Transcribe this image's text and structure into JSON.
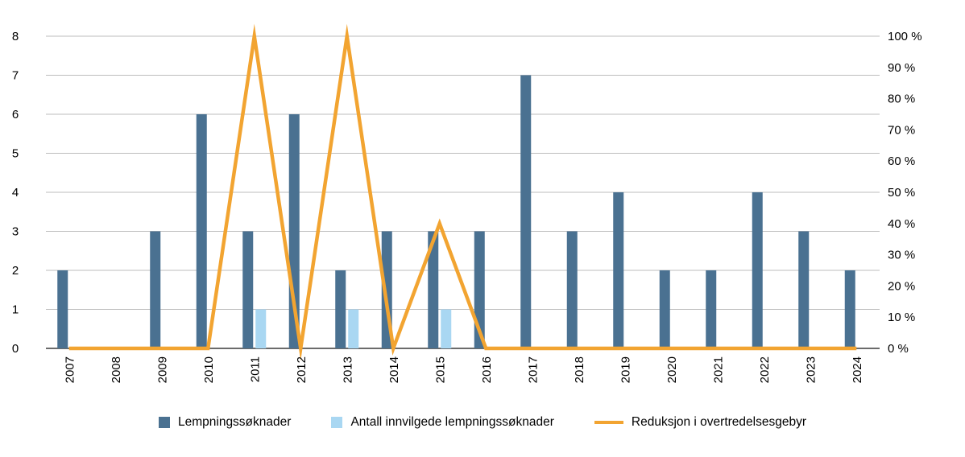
{
  "chart_data": {
    "type": "bar",
    "subtype": "bar-line-combo",
    "title": "",
    "categories": [
      "2007",
      "2008",
      "2009",
      "2010",
      "2011",
      "2012",
      "2013",
      "2014",
      "2015",
      "2016",
      "2017",
      "2018",
      "2019",
      "2020",
      "2021",
      "2022",
      "2023",
      "2024"
    ],
    "series": [
      {
        "name": "Lempningssøknader",
        "type": "bar",
        "axis": "left",
        "color": "#4a7191",
        "values": [
          2,
          0,
          3,
          6,
          3,
          6,
          2,
          3,
          3,
          3,
          7,
          3,
          4,
          2,
          2,
          4,
          3,
          2
        ]
      },
      {
        "name": "Antall innvilgede lempningssøknader",
        "type": "bar",
        "axis": "left",
        "color": "#a9d7f2",
        "values": [
          0,
          0,
          0,
          0,
          1,
          0,
          1,
          0,
          1,
          0,
          0,
          0,
          0,
          0,
          0,
          0,
          0,
          0
        ]
      },
      {
        "name": "Reduksjon i overtredelsesgebyr",
        "type": "line",
        "axis": "right",
        "color": "#f2a431",
        "values": [
          0,
          0,
          0,
          0,
          100,
          0,
          100,
          0,
          40,
          0,
          0,
          0,
          0,
          0,
          0,
          0,
          0,
          0
        ]
      }
    ],
    "left_axis": {
      "min": 0,
      "max": 8,
      "ticks": [
        0,
        1,
        2,
        3,
        4,
        5,
        6,
        7,
        8
      ]
    },
    "right_axis": {
      "min": 0,
      "max": 100,
      "ticks": [
        0,
        10,
        20,
        30,
        40,
        50,
        60,
        70,
        80,
        90,
        100
      ],
      "suffix": " %"
    },
    "grid": true,
    "legend_position": "bottom",
    "colors": {
      "grid": "#bdbdbd",
      "zero_line": "#3a3a3a",
      "text": "#000000",
      "background": "#ffffff"
    }
  }
}
